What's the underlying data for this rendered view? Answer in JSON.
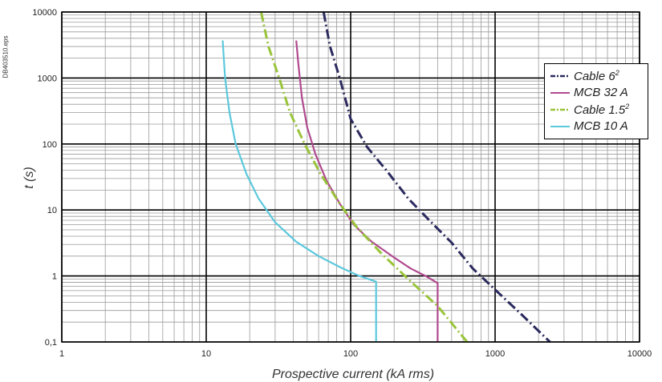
{
  "figure_id": "DB403510.eps",
  "chart_data": {
    "type": "line",
    "xlabel": "Prospective current (kA rms)",
    "ylabel": "t (s)",
    "x_scale": "log",
    "y_scale": "log",
    "xlim": [
      1,
      10000
    ],
    "ylim": [
      0.1,
      10000
    ],
    "x_ticks": [
      "1",
      "10",
      "100",
      "1000",
      "10000"
    ],
    "y_ticks": [
      "0,1",
      "1",
      "10",
      "100",
      "1000",
      "10000"
    ],
    "grid": true,
    "legend_position": "right",
    "series": [
      {
        "name": "Cable 6",
        "name_sup": "2",
        "color": "#2b2a5e",
        "style": "dash-dot",
        "points": [
          [
            65,
            10000
          ],
          [
            72,
            3000
          ],
          [
            84,
            1000
          ],
          [
            100,
            240
          ],
          [
            130,
            90
          ],
          [
            180,
            38
          ],
          [
            250,
            15
          ],
          [
            350,
            7
          ],
          [
            500,
            3.2
          ],
          [
            700,
            1.3
          ],
          [
            1000,
            0.62
          ],
          [
            1500,
            0.27
          ],
          [
            2400,
            0.1
          ]
        ]
      },
      {
        "name": "MCB 32 A",
        "color": "#b04a8f",
        "style": "solid",
        "points": [
          [
            42,
            3700
          ],
          [
            43.5,
            1600
          ],
          [
            46,
            500
          ],
          [
            50,
            180
          ],
          [
            57,
            70
          ],
          [
            68,
            28
          ],
          [
            85,
            12
          ],
          [
            105,
            6
          ],
          [
            140,
            3.3
          ],
          [
            200,
            1.9
          ],
          [
            260,
            1.3
          ],
          [
            330,
            1.0
          ],
          [
            400,
            0.78
          ],
          [
            400,
            0.1
          ]
        ]
      },
      {
        "name": "Cable 1.5",
        "name_sup": "2",
        "color": "#99c43a",
        "style": "dash-dot",
        "points": [
          [
            24,
            10000
          ],
          [
            27,
            3000
          ],
          [
            32,
            1000
          ],
          [
            38,
            300
          ],
          [
            48,
            100
          ],
          [
            62,
            35
          ],
          [
            85,
            12
          ],
          [
            110,
            5.5
          ],
          [
            160,
            2.3
          ],
          [
            250,
            0.9
          ],
          [
            400,
            0.35
          ],
          [
            640,
            0.1
          ]
        ]
      },
      {
        "name": "MCB 10 A",
        "color": "#5cc8dc",
        "style": "solid",
        "points": [
          [
            13,
            3700
          ],
          [
            13.5,
            1000
          ],
          [
            14.5,
            300
          ],
          [
            16,
            100
          ],
          [
            19,
            35
          ],
          [
            23,
            15
          ],
          [
            30,
            6.5
          ],
          [
            42,
            3.3
          ],
          [
            60,
            2.0
          ],
          [
            85,
            1.35
          ],
          [
            115,
            1.0
          ],
          [
            150,
            0.82
          ],
          [
            150,
            0.1
          ]
        ]
      }
    ]
  }
}
